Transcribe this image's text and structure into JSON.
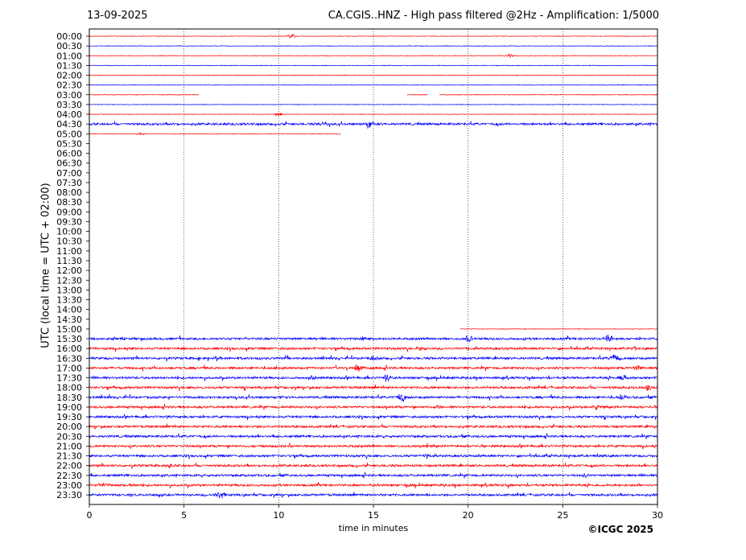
{
  "header": {
    "date": "13-09-2025",
    "title": "CA.CGIS..HNZ - High pass filtered @2Hz - Amplification: 1/5000"
  },
  "footer": {
    "copyright": "©ICGC 2025"
  },
  "chart_data": {
    "type": "line",
    "title": "CA.CGIS..HNZ - High pass filtered @2Hz - Amplification: 1/5000",
    "xlabel": "time in minutes",
    "ylabel": "UTC (local time = UTC + 02:00)",
    "xlim": [
      0,
      30
    ],
    "xticks": [
      0,
      5,
      10,
      15,
      20,
      25,
      30
    ],
    "vertical_grid": [
      5,
      10,
      15,
      20,
      25
    ],
    "rows": [
      "00:00",
      "00:30",
      "01:00",
      "01:30",
      "02:00",
      "02:30",
      "03:00",
      "03:30",
      "04:00",
      "04:30",
      "05:00",
      "05:30",
      "06:00",
      "06:30",
      "07:00",
      "07:30",
      "08:00",
      "08:30",
      "09:00",
      "09:30",
      "10:00",
      "10:30",
      "11:00",
      "11:30",
      "12:00",
      "12:30",
      "13:00",
      "13:30",
      "14:00",
      "14:30",
      "15:00",
      "15:30",
      "16:00",
      "16:30",
      "17:00",
      "17:30",
      "18:00",
      "18:30",
      "19:00",
      "19:30",
      "20:00",
      "20:30",
      "21:00",
      "21:30",
      "22:00",
      "22:30",
      "23:00",
      "23:30"
    ],
    "row_colors": [
      "#ff0000",
      "#0000ff"
    ],
    "segments": [
      {
        "row": "03:00",
        "ranges": [
          [
            0,
            5.8
          ],
          [
            16.8,
            17.9
          ],
          [
            18.5,
            30
          ]
        ]
      },
      {
        "row": "05:00",
        "ranges": [
          [
            0,
            13.3
          ]
        ]
      },
      {
        "row": "15:00",
        "ranges": [
          [
            19.6,
            30
          ]
        ]
      }
    ],
    "events": [
      {
        "row": "00:00",
        "t": 10.7,
        "amp": 3
      },
      {
        "row": "01:00",
        "t": 22.2,
        "amp": 2
      },
      {
        "row": "04:00",
        "t": 10.0,
        "amp": 2
      },
      {
        "row": "04:30",
        "t": 14.8,
        "amp": 6
      },
      {
        "row": "04:30",
        "t": 12.4,
        "amp": 3
      },
      {
        "row": "05:00",
        "t": 2.7,
        "amp": 2
      },
      {
        "row": "15:30",
        "t": 20.0,
        "amp": 5
      },
      {
        "row": "15:30",
        "t": 27.4,
        "amp": 5
      },
      {
        "row": "15:30",
        "t": 14.5,
        "amp": 2
      },
      {
        "row": "16:00",
        "t": 17.5,
        "amp": 3
      },
      {
        "row": "16:00",
        "t": 28.8,
        "amp": 3
      },
      {
        "row": "16:30",
        "t": 15.0,
        "amp": 3
      },
      {
        "row": "16:30",
        "t": 27.7,
        "amp": 5
      },
      {
        "row": "17:00",
        "t": 14.2,
        "amp": 5
      },
      {
        "row": "17:00",
        "t": 29.0,
        "amp": 4
      },
      {
        "row": "17:30",
        "t": 11.8,
        "amp": 3
      },
      {
        "row": "17:30",
        "t": 15.7,
        "amp": 4
      },
      {
        "row": "17:30",
        "t": 28.2,
        "amp": 4
      },
      {
        "row": "18:00",
        "t": 29.5,
        "amp": 4
      },
      {
        "row": "18:30",
        "t": 16.5,
        "amp": 6
      },
      {
        "row": "18:30",
        "t": 10.1,
        "amp": 2
      },
      {
        "row": "18:30",
        "t": 28.1,
        "amp": 4
      },
      {
        "row": "19:00",
        "t": 18.5,
        "amp": 3
      },
      {
        "row": "19:00",
        "t": 26.8,
        "amp": 3
      },
      {
        "row": "20:00",
        "t": 29.9,
        "amp": 2
      },
      {
        "row": "21:30",
        "t": 17.7,
        "amp": 2
      },
      {
        "row": "22:00",
        "t": 4.2,
        "amp": 3
      },
      {
        "row": "22:30",
        "t": 26.2,
        "amp": 2
      },
      {
        "row": "23:00",
        "t": 0.7,
        "amp": 3
      },
      {
        "row": "23:00",
        "t": 2.2,
        "amp": 2
      },
      {
        "row": "23:30",
        "t": 6.9,
        "amp": 5
      }
    ],
    "noise": {
      "quiet_rows": [
        "00:00",
        "00:30",
        "01:00",
        "01:30",
        "02:00",
        "02:30",
        "03:00",
        "03:30",
        "04:00",
        "05:00",
        "15:00"
      ],
      "active_rows": [
        "04:30",
        "15:30",
        "16:00",
        "16:30",
        "17:00",
        "17:30",
        "18:00",
        "18:30",
        "19:00",
        "19:30",
        "20:00",
        "20:30",
        "21:00",
        "21:30",
        "22:00",
        "22:30",
        "23:00",
        "23:30"
      ],
      "empty_rows_from": "05:30",
      "empty_rows_to": "14:30"
    }
  }
}
